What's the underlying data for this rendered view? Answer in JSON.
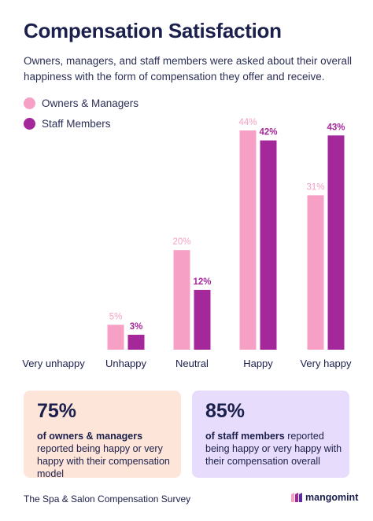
{
  "header": {
    "title": "Compensation Satisfaction",
    "subtitle": "Owners, managers, and staff members were asked about their overall happiness with the form of compensation they offer and receive."
  },
  "colors": {
    "owners": "#f7a0c6",
    "staff": "#a5289b",
    "card_left_bg": "#fde5da",
    "card_right_bg": "#e7dcfb",
    "text": "#1b1f4b"
  },
  "chart_data": {
    "type": "bar",
    "categories": [
      "Very unhappy",
      "Unhappy",
      "Neutral",
      "Happy",
      "Very happy"
    ],
    "series": [
      {
        "name": "Owners & Managers",
        "values": [
          0,
          5,
          20,
          44,
          31
        ],
        "labels": [
          "",
          "5%",
          "20%",
          "44%",
          "31%"
        ]
      },
      {
        "name": "Staff Members",
        "values": [
          0,
          3,
          12,
          42,
          43
        ],
        "labels": [
          "",
          "3%",
          "12%",
          "42%",
          "43%"
        ]
      }
    ],
    "title": "Compensation Satisfaction",
    "xlabel": "",
    "ylabel": "",
    "ylim": [
      0,
      44
    ],
    "grid": false,
    "legend": "top-left"
  },
  "cards": {
    "left": {
      "value": "75%",
      "bold": "of owners & managers",
      "rest": " reported being happy or very happy with their compensation model"
    },
    "right": {
      "value": "85%",
      "bold": "of staff members",
      "rest": " reported being happy or very happy with their compensation overall"
    }
  },
  "footer": {
    "source": "The Spa & Salon Compensation Survey",
    "brand": "mangomint"
  }
}
